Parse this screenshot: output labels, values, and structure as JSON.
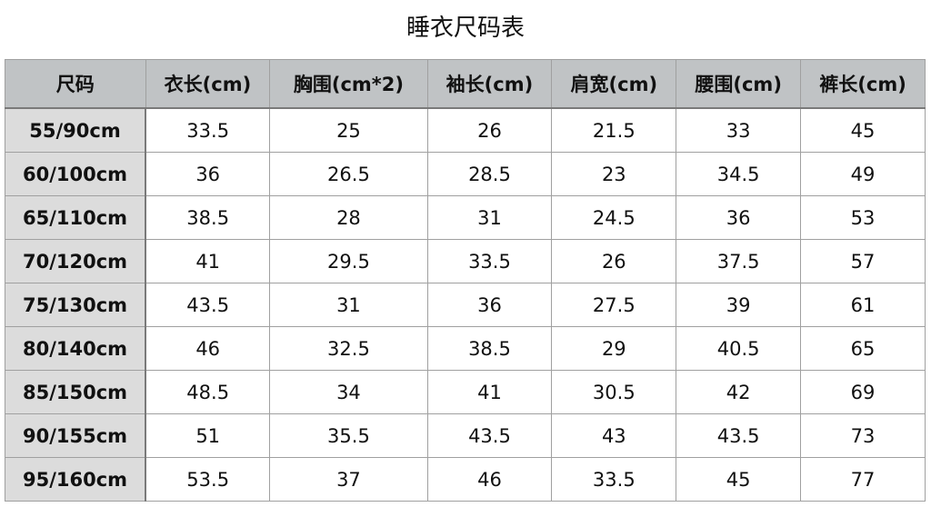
{
  "title": "睡衣尺码表",
  "headers": [
    "尺码",
    "衣长(cm)",
    "胸围(cm*2)",
    "袖长(cm)",
    "肩宽(cm)",
    "腰围(cm)",
    "裤长(cm)"
  ],
  "rows": [
    [
      "55/90cm",
      "33.5",
      "25",
      "26",
      "21.5",
      "33",
      "45"
    ],
    [
      "60/100cm",
      "36",
      "26.5",
      "28.5",
      "23",
      "34.5",
      "49"
    ],
    [
      "65/110cm",
      "38.5",
      "28",
      "31",
      "24.5",
      "36",
      "53"
    ],
    [
      "70/120cm",
      "41",
      "29.5",
      "33.5",
      "26",
      "37.5",
      "57"
    ],
    [
      "75/130cm",
      "43.5",
      "31",
      "36",
      "27.5",
      "39",
      "61"
    ],
    [
      "80/140cm",
      "46",
      "32.5",
      "38.5",
      "29",
      "40.5",
      "65"
    ],
    [
      "85/150cm",
      "48.5",
      "34",
      "41",
      "30.5",
      "42",
      "69"
    ],
    [
      "90/155cm",
      "51",
      "35.5",
      "43.5",
      "43",
      "43.5",
      "73"
    ],
    [
      "95/160cm",
      "53.5",
      "37",
      "46",
      "33.5",
      "45",
      "77"
    ]
  ]
}
